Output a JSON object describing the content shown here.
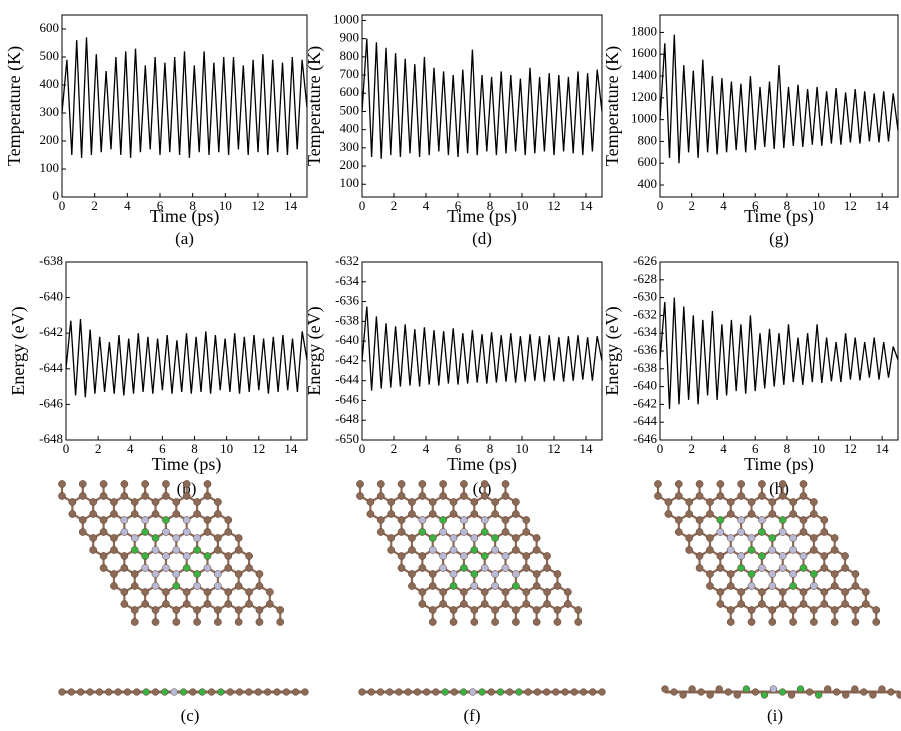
{
  "chart_data": [
    {
      "type": "line",
      "caption": "(a)",
      "x_label": "Time (ps)",
      "y_label": "Temperature (K)",
      "color": "#000000",
      "xlim": [
        0,
        15
      ],
      "xticks": [
        0,
        2,
        4,
        6,
        8,
        10,
        12,
        14
      ],
      "ylim": [
        0,
        650
      ],
      "yticks": [
        0,
        100,
        200,
        300,
        400,
        500,
        600
      ],
      "x": [
        0,
        0.3,
        0.6,
        0.9,
        1.2,
        1.5,
        1.8,
        2.1,
        2.4,
        2.7,
        3,
        3.3,
        3.6,
        3.9,
        4.2,
        4.5,
        4.8,
        5.1,
        5.4,
        5.7,
        6,
        6.3,
        6.6,
        6.9,
        7.2,
        7.5,
        7.8,
        8.1,
        8.4,
        8.7,
        9,
        9.3,
        9.6,
        9.9,
        10.2,
        10.5,
        10.8,
        11.1,
        11.4,
        11.7,
        12,
        12.3,
        12.6,
        12.9,
        13.2,
        13.5,
        13.8,
        14.1,
        14.4,
        14.7,
        15
      ],
      "values": [
        300,
        490,
        150,
        560,
        140,
        570,
        150,
        510,
        160,
        450,
        170,
        500,
        150,
        520,
        140,
        530,
        160,
        470,
        170,
        500,
        150,
        480,
        160,
        500,
        150,
        520,
        140,
        470,
        160,
        520,
        150,
        480,
        160,
        500,
        150,
        500,
        170,
        470,
        150,
        490,
        160,
        510,
        150,
        490,
        160,
        480,
        150,
        500,
        170,
        490,
        320
      ]
    },
    {
      "type": "line",
      "caption": "(d)",
      "x_label": "Time (ps)",
      "y_label": "Temperature (K)",
      "color": "#000000",
      "xlim": [
        0,
        15
      ],
      "xticks": [
        0,
        2,
        4,
        6,
        8,
        10,
        12,
        14
      ],
      "ylim": [
        30,
        1030
      ],
      "yticks": [
        100,
        200,
        300,
        400,
        500,
        600,
        700,
        800,
        900,
        1000
      ],
      "x": [
        0,
        0.3,
        0.6,
        0.9,
        1.2,
        1.5,
        1.8,
        2.1,
        2.4,
        2.7,
        3,
        3.3,
        3.6,
        3.9,
        4.2,
        4.5,
        4.8,
        5.1,
        5.4,
        5.7,
        6,
        6.3,
        6.6,
        6.9,
        7.2,
        7.5,
        7.8,
        8.1,
        8.4,
        8.7,
        9,
        9.3,
        9.6,
        9.9,
        10.2,
        10.5,
        10.8,
        11.1,
        11.4,
        11.7,
        12,
        12.3,
        12.6,
        12.9,
        13.2,
        13.5,
        13.8,
        14.1,
        14.4,
        14.7,
        15
      ],
      "values": [
        500,
        900,
        250,
        880,
        240,
        850,
        260,
        820,
        250,
        790,
        270,
        760,
        250,
        800,
        260,
        740,
        280,
        720,
        260,
        700,
        250,
        730,
        270,
        840,
        260,
        700,
        280,
        690,
        260,
        720,
        270,
        700,
        280,
        680,
        260,
        740,
        270,
        690,
        280,
        710,
        260,
        700,
        280,
        690,
        270,
        720,
        260,
        710,
        280,
        730,
        500
      ]
    },
    {
      "type": "line",
      "caption": "(g)",
      "x_label": "Time (ps)",
      "y_label": "Temperature (K)",
      "color": "#000000",
      "xlim": [
        0,
        15
      ],
      "xticks": [
        0,
        2,
        4,
        6,
        8,
        10,
        12,
        14
      ],
      "ylim": [
        290,
        1960
      ],
      "yticks": [
        400,
        600,
        800,
        1000,
        1200,
        1400,
        1600,
        1800
      ],
      "x": [
        0,
        0.3,
        0.6,
        0.9,
        1.2,
        1.5,
        1.8,
        2.1,
        2.4,
        2.7,
        3,
        3.3,
        3.6,
        3.9,
        4.2,
        4.5,
        4.8,
        5.1,
        5.4,
        5.7,
        6,
        6.3,
        6.6,
        6.9,
        7.2,
        7.5,
        7.8,
        8.1,
        8.4,
        8.7,
        9,
        9.3,
        9.6,
        9.9,
        10.2,
        10.5,
        10.8,
        11.1,
        11.4,
        11.7,
        12,
        12.3,
        12.6,
        12.9,
        13.2,
        13.5,
        13.8,
        14.1,
        14.4,
        14.7,
        15
      ],
      "values": [
        1000,
        1700,
        650,
        1780,
        600,
        1500,
        700,
        1450,
        650,
        1550,
        700,
        1400,
        680,
        1380,
        700,
        1350,
        720,
        1330,
        700,
        1400,
        720,
        1300,
        750,
        1350,
        730,
        1500,
        740,
        1300,
        760,
        1320,
        750,
        1280,
        770,
        1300,
        760,
        1260,
        780,
        1290,
        770,
        1250,
        790,
        1280,
        780,
        1260,
        800,
        1240,
        790,
        1260,
        800,
        1240,
        900
      ]
    },
    {
      "type": "line",
      "caption": "(b)",
      "x_label": "Time (ps)",
      "y_label": "Energy (eV)",
      "color": "#000000",
      "xlim": [
        0,
        15
      ],
      "xticks": [
        0,
        2,
        4,
        6,
        8,
        10,
        12,
        14
      ],
      "ylim": [
        -648,
        -638
      ],
      "yticks": [
        -648,
        -646,
        -644,
        -642,
        -640,
        -638
      ],
      "x": [
        0,
        0.3,
        0.6,
        0.9,
        1.2,
        1.5,
        1.8,
        2.1,
        2.4,
        2.7,
        3,
        3.3,
        3.6,
        3.9,
        4.2,
        4.5,
        4.8,
        5.1,
        5.4,
        5.7,
        6,
        6.3,
        6.6,
        6.9,
        7.2,
        7.5,
        7.8,
        8.1,
        8.4,
        8.7,
        9,
        9.3,
        9.6,
        9.9,
        10.2,
        10.5,
        10.8,
        11.1,
        11.4,
        11.7,
        12,
        12.3,
        12.6,
        12.9,
        13.2,
        13.5,
        13.8,
        14.1,
        14.4,
        14.7,
        15
      ],
      "values": [
        -644,
        -641.3,
        -645.5,
        -641.2,
        -645.6,
        -641.8,
        -645.4,
        -642.2,
        -645.3,
        -642.5,
        -645.4,
        -642.1,
        -645.5,
        -642.3,
        -645.4,
        -642,
        -645.3,
        -642.2,
        -645.4,
        -642.3,
        -645.2,
        -642.1,
        -645.4,
        -642.4,
        -645.3,
        -642,
        -645.4,
        -642.2,
        -645.3,
        -641.9,
        -645.4,
        -642.1,
        -645.2,
        -642.3,
        -645.3,
        -642,
        -645.4,
        -642.2,
        -645.3,
        -642.1,
        -645.2,
        -642.3,
        -645.4,
        -642.2,
        -645.3,
        -642.1,
        -645.2,
        -642.3,
        -645.3,
        -641.9,
        -643.5
      ]
    },
    {
      "type": "line",
      "caption": "(c)",
      "x_label": "Time (ps)",
      "y_label": "Energy (eV)",
      "color": "#000000",
      "xlim": [
        0,
        15
      ],
      "xticks": [
        0,
        2,
        4,
        6,
        8,
        10,
        12,
        14
      ],
      "ylim": [
        -650,
        -632
      ],
      "yticks": [
        -650,
        -648,
        -646,
        -644,
        -642,
        -640,
        -638,
        -636,
        -634,
        -632
      ],
      "x": [
        0,
        0.3,
        0.6,
        0.9,
        1.2,
        1.5,
        1.8,
        2.1,
        2.4,
        2.7,
        3,
        3.3,
        3.6,
        3.9,
        4.2,
        4.5,
        4.8,
        5.1,
        5.4,
        5.7,
        6,
        6.3,
        6.6,
        6.9,
        7.2,
        7.5,
        7.8,
        8.1,
        8.4,
        8.7,
        9,
        9.3,
        9.6,
        9.9,
        10.2,
        10.5,
        10.8,
        11.1,
        11.4,
        11.7,
        12,
        12.3,
        12.6,
        12.9,
        13.2,
        13.5,
        13.8,
        14.1,
        14.4,
        14.7,
        15
      ],
      "values": [
        -642,
        -636.5,
        -645,
        -637.5,
        -644.8,
        -638.2,
        -644.7,
        -638.5,
        -644.6,
        -638.3,
        -644.5,
        -638.8,
        -644.6,
        -638.6,
        -644.4,
        -638.9,
        -644.5,
        -639,
        -644.3,
        -638.7,
        -644.4,
        -639.2,
        -644.3,
        -638.9,
        -644.2,
        -639.3,
        -644.3,
        -639.1,
        -644.2,
        -639.4,
        -644.1,
        -639.2,
        -644.2,
        -639.5,
        -644.1,
        -639.3,
        -644,
        -639.5,
        -644.1,
        -639.4,
        -644,
        -639.6,
        -644.1,
        -639.5,
        -644,
        -639.4,
        -643.9,
        -639.6,
        -644,
        -639.5,
        -642
      ]
    },
    {
      "type": "line",
      "caption": "(h)",
      "x_label": "Time (ps)",
      "y_label": "Energy (eV)",
      "color": "#000000",
      "xlim": [
        0,
        15
      ],
      "xticks": [
        0,
        2,
        4,
        6,
        8,
        10,
        12,
        14
      ],
      "ylim": [
        -646,
        -626
      ],
      "yticks": [
        -646,
        -644,
        -642,
        -640,
        -638,
        -636,
        -634,
        -632,
        -630,
        -628,
        -626
      ],
      "x": [
        0,
        0.3,
        0.6,
        0.9,
        1.2,
        1.5,
        1.8,
        2.1,
        2.4,
        2.7,
        3,
        3.3,
        3.6,
        3.9,
        4.2,
        4.5,
        4.8,
        5.1,
        5.4,
        5.7,
        6,
        6.3,
        6.6,
        6.9,
        7.2,
        7.5,
        7.8,
        8.1,
        8.4,
        8.7,
        9,
        9.3,
        9.6,
        9.9,
        10.2,
        10.5,
        10.8,
        11.1,
        11.4,
        11.7,
        12,
        12.3,
        12.6,
        12.9,
        13.2,
        13.5,
        13.8,
        14.1,
        14.4,
        14.7,
        15
      ],
      "values": [
        -637,
        -630.5,
        -642.5,
        -630,
        -642,
        -631,
        -641.5,
        -632,
        -642,
        -632.5,
        -641,
        -631.5,
        -641.5,
        -633,
        -641,
        -632.5,
        -640.5,
        -633,
        -640.8,
        -632,
        -640.5,
        -634,
        -640.2,
        -633.5,
        -640,
        -634,
        -639.8,
        -633,
        -639.5,
        -634.5,
        -639.8,
        -634,
        -639.5,
        -633,
        -639.6,
        -634.5,
        -639.4,
        -635,
        -639.5,
        -634,
        -639.2,
        -634.5,
        -639.3,
        -635,
        -639,
        -634.5,
        -639.2,
        -635,
        -639,
        -635.5,
        -637
      ]
    }
  ],
  "structures": [
    {
      "caption": "(c)"
    },
    {
      "caption": "(f)"
    },
    {
      "caption": "(i)"
    }
  ]
}
